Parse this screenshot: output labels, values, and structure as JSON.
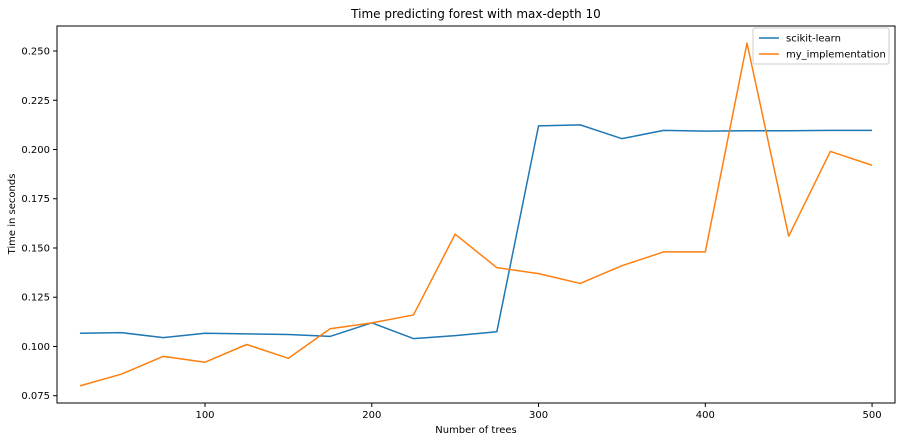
{
  "chart_data": {
    "type": "line",
    "title": "Time predicting forest with max-depth 10",
    "xlabel": "Number of trees",
    "ylabel": "Time in seconds",
    "x": [
      25,
      50,
      75,
      100,
      125,
      150,
      175,
      200,
      225,
      250,
      275,
      300,
      325,
      350,
      375,
      400,
      425,
      450,
      475,
      500
    ],
    "series": [
      {
        "name": "scikit-learn",
        "color": "#1f77b4",
        "values": [
          0.1067,
          0.107,
          0.1045,
          0.1067,
          0.1064,
          0.1061,
          0.1051,
          0.112,
          0.104,
          0.1055,
          0.1075,
          0.212,
          0.2125,
          0.2055,
          0.2097,
          0.2093,
          0.2095,
          0.2095,
          0.2097,
          0.2097
        ]
      },
      {
        "name": "my_implementation",
        "color": "#ff7f0e",
        "values": [
          0.08,
          0.086,
          0.095,
          0.092,
          0.101,
          0.094,
          0.109,
          0.112,
          0.116,
          0.157,
          0.14,
          0.137,
          0.132,
          0.141,
          0.148,
          0.148,
          0.254,
          0.156,
          0.199,
          0.192
        ]
      }
    ],
    "xlim": [
      11.25,
      513.75
    ],
    "ylim": [
      0.0713,
      0.2627
    ],
    "xticks": [
      100,
      200,
      300,
      400,
      500
    ],
    "yticks": [
      0.075,
      0.1,
      0.125,
      0.15,
      0.175,
      0.2,
      0.225,
      0.25
    ],
    "ytick_labels": [
      "0.075",
      "0.100",
      "0.125",
      "0.150",
      "0.175",
      "0.200",
      "0.225",
      "0.250"
    ],
    "grid": false,
    "legend_position": "top-right"
  }
}
